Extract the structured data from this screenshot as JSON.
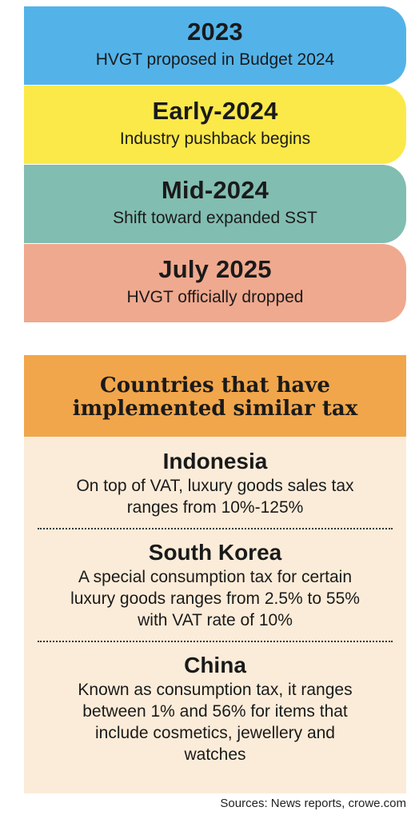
{
  "timeline": [
    {
      "year": "2023",
      "desc": "HVGT proposed in Budget 2024",
      "color": "#53b3e9"
    },
    {
      "year": "Early-2024",
      "desc": "Industry pushback begins",
      "color": "#fbe94a"
    },
    {
      "year": "Mid-2024",
      "desc": "Shift toward expanded SST",
      "color": "#82bdb1"
    },
    {
      "year": "July 2025",
      "desc": "HVGT officially dropped",
      "color": "#efa98f"
    }
  ],
  "countries": {
    "heading_line1": "Countries that have",
    "heading_line2": "implemented similar tax",
    "heading_color": "#f1a64b",
    "panel_color": "#fbecd9",
    "items": [
      {
        "name": "Indonesia",
        "desc_lines": [
          "On top of VAT, luxury goods sales tax",
          "ranges from 10%-125%"
        ]
      },
      {
        "name": "South Korea",
        "desc_lines": [
          "A special consumption tax for certain",
          "luxury goods ranges from 2.5% to 55%",
          "with VAT rate of 10%"
        ]
      },
      {
        "name": "China",
        "desc_lines": [
          "Known as consumption tax, it ranges",
          "between 1% and 56% for items that",
          "include cosmetics, jewellery and",
          "watches"
        ]
      }
    ]
  },
  "sources": "Sources: News reports, crowe.com"
}
